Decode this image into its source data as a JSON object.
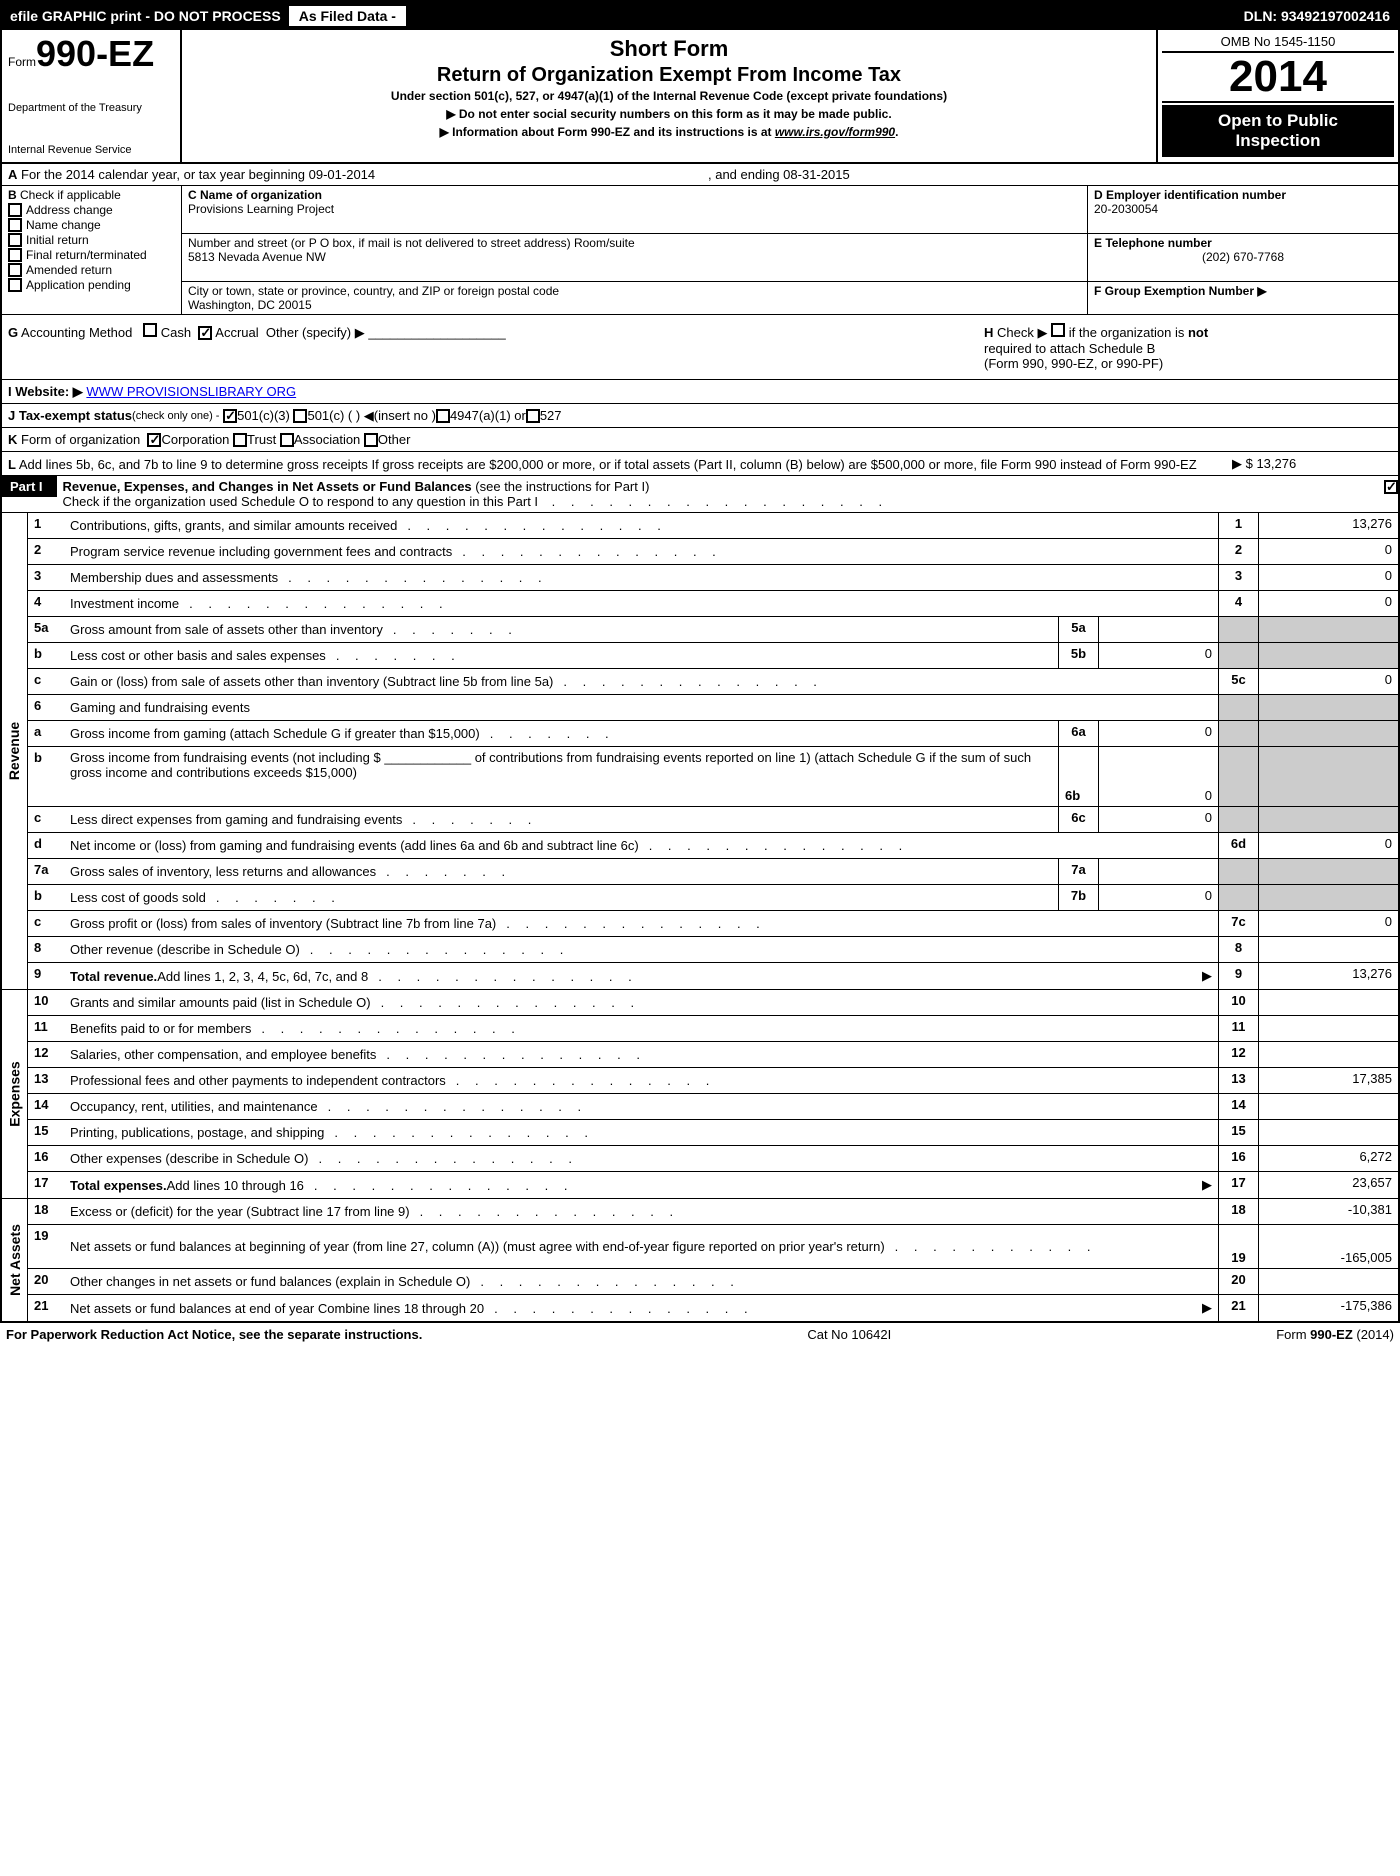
{
  "top_bar": {
    "efile": "efile GRAPHIC print - DO NOT PROCESS",
    "as_filed": "As Filed Data -",
    "dln": "DLN: 93492197002416"
  },
  "header": {
    "form_prefix": "Form",
    "form_number": "990-EZ",
    "dept1": "Department of the Treasury",
    "dept2": "Internal Revenue Service",
    "short_form": "Short Form",
    "title": "Return of Organization Exempt From Income Tax",
    "subtitle": "Under section 501(c), 527, or 4947(a)(1) of the Internal Revenue Code (except private foundations)",
    "notice1": "▶ Do not enter social security numbers on this form as it may be made public.",
    "notice2_pre": "▶ Information about Form 990-EZ and its instructions is at ",
    "notice2_link": "www.irs.gov/form990",
    "notice2_post": ".",
    "omb": "OMB No 1545-1150",
    "year": "2014",
    "open1": "Open to Public",
    "open2": "Inspection"
  },
  "line_a": {
    "label": "A",
    "text_pre": "For the 2014 calendar year, or tax year beginning 09-01-2014",
    "text_mid": ", and ending 08-31-2015"
  },
  "section_b": {
    "label": "B",
    "heading": "Check if applicable",
    "items": [
      "Address change",
      "Name change",
      "Initial return",
      "Final return/terminated",
      "Amended return",
      "Application pending"
    ]
  },
  "section_c": {
    "label_name": "C Name of organization",
    "org_name": "Provisions Learning Project",
    "label_street": "Number and street (or P O box, if mail is not delivered to street address) Room/suite",
    "street": "5813 Nevada Avenue NW",
    "label_city": "City or town, state or province, country, and ZIP or foreign postal code",
    "city": "Washington, DC 20015"
  },
  "section_d": {
    "label": "D Employer identification number",
    "value": "20-2030054"
  },
  "section_e": {
    "label": "E Telephone number",
    "value": "(202) 670-7768"
  },
  "section_f": {
    "label": "F Group Exemption Number  ▶",
    "value": ""
  },
  "line_g": {
    "label": "G",
    "text": "Accounting Method",
    "cash": "Cash",
    "accrual": "Accrual",
    "other": "Other (specify) ▶"
  },
  "line_h": {
    "label": "H",
    "text1": "Check ▶",
    "text2_pre": "if the organization is ",
    "text2_bold": "not",
    "text3": "required to attach Schedule B",
    "text4": "(Form 990, 990-EZ, or 990-PF)"
  },
  "line_i": {
    "label": "I Website: ▶",
    "value": "WWW PROVISIONSLIBRARY ORG"
  },
  "line_j": {
    "label": "J Tax-exempt status",
    "suffix": "(check only one) -",
    "opt1": "501(c)(3)",
    "opt2": "501(c) (   ) ◀(insert no )",
    "opt3": "4947(a)(1) or",
    "opt4": "527"
  },
  "line_k": {
    "label": "K",
    "text": "Form of organization",
    "corp": "Corporation",
    "trust": "Trust",
    "assoc": "Association",
    "other": "Other"
  },
  "line_l": {
    "label": "L",
    "text": "Add lines 5b, 6c, and 7b to line 9 to determine gross receipts  If gross receipts are $200,000 or more, or if total assets (Part II, column (B) below) are $500,000 or more, file Form 990 instead of Form 990-EZ",
    "value": "▶ $ 13,276"
  },
  "part1": {
    "label": "Part I",
    "title": "Revenue, Expenses, and Changes in Net Assets or Fund Balances",
    "paren": "(see the instructions for Part I)",
    "check_text": "Check if the organization used Schedule O to respond to any question in this Part I"
  },
  "revenue_label": "Revenue",
  "expenses_label": "Expenses",
  "netassets_label": "Net Assets",
  "lines": {
    "l1": {
      "num": "1",
      "desc": "Contributions, gifts, grants, and similar amounts received",
      "box": "1",
      "val": "13,276"
    },
    "l2": {
      "num": "2",
      "desc": "Program service revenue including government fees and contracts",
      "box": "2",
      "val": "0"
    },
    "l3": {
      "num": "3",
      "desc": "Membership dues and assessments",
      "box": "3",
      "val": "0"
    },
    "l4": {
      "num": "4",
      "desc": "Investment income",
      "box": "4",
      "val": "0"
    },
    "l5a": {
      "num": "5a",
      "desc": "Gross amount from sale of assets other than inventory",
      "sub": "5a",
      "subval": ""
    },
    "l5b": {
      "num": "b",
      "desc": "Less  cost or other basis and sales expenses",
      "sub": "5b",
      "subval": "0"
    },
    "l5c": {
      "num": "c",
      "desc": "Gain or (loss) from sale of assets other than inventory (Subtract line 5b from line 5a)",
      "box": "5c",
      "val": "0"
    },
    "l6": {
      "num": "6",
      "desc": "Gaming and fundraising events"
    },
    "l6a": {
      "num": "a",
      "desc": "Gross income from gaming (attach Schedule G if greater than $15,000)",
      "sub": "6a",
      "subval": "0"
    },
    "l6b": {
      "num": "b",
      "desc1": "Gross income from fundraising events (not including $ ",
      "desc2": "of contributions from fundraising events reported on line 1) (attach Schedule G if the sum of such gross income and contributions exceeds $15,000)",
      "sub": "6b",
      "subval": "0"
    },
    "l6c": {
      "num": "c",
      "desc": "Less  direct expenses from gaming and fundraising events",
      "sub": "6c",
      "subval": "0"
    },
    "l6d": {
      "num": "d",
      "desc": "Net income or (loss) from gaming and fundraising events (add lines 6a and 6b and subtract line 6c)",
      "box": "6d",
      "val": "0"
    },
    "l7a": {
      "num": "7a",
      "desc": "Gross sales of inventory, less returns and allowances",
      "sub": "7a",
      "subval": ""
    },
    "l7b": {
      "num": "b",
      "desc": "Less  cost of goods sold",
      "sub": "7b",
      "subval": "0"
    },
    "l7c": {
      "num": "c",
      "desc": "Gross profit or (loss) from sales of inventory (Subtract line 7b from line 7a)",
      "box": "7c",
      "val": "0"
    },
    "l8": {
      "num": "8",
      "desc": "Other revenue (describe in Schedule O)",
      "box": "8",
      "val": ""
    },
    "l9": {
      "num": "9",
      "desc_bold": "Total revenue.",
      "desc": " Add lines 1, 2, 3, 4, 5c, 6d, 7c, and 8",
      "box": "9",
      "val": "13,276"
    },
    "l10": {
      "num": "10",
      "desc": "Grants and similar amounts paid (list in Schedule O)",
      "box": "10",
      "val": ""
    },
    "l11": {
      "num": "11",
      "desc": "Benefits paid to or for members",
      "box": "11",
      "val": ""
    },
    "l12": {
      "num": "12",
      "desc": "Salaries, other compensation, and employee benefits",
      "box": "12",
      "val": ""
    },
    "l13": {
      "num": "13",
      "desc": "Professional fees and other payments to independent contractors",
      "box": "13",
      "val": "17,385"
    },
    "l14": {
      "num": "14",
      "desc": "Occupancy, rent, utilities, and maintenance",
      "box": "14",
      "val": ""
    },
    "l15": {
      "num": "15",
      "desc": "Printing, publications, postage, and shipping",
      "box": "15",
      "val": ""
    },
    "l16": {
      "num": "16",
      "desc": "Other expenses (describe in Schedule O)",
      "box": "16",
      "val": "6,272"
    },
    "l17": {
      "num": "17",
      "desc_bold": "Total expenses.",
      "desc": " Add lines 10 through 16",
      "box": "17",
      "val": "23,657"
    },
    "l18": {
      "num": "18",
      "desc": "Excess or (deficit) for the year (Subtract line 17 from line 9)",
      "box": "18",
      "val": "-10,381"
    },
    "l19": {
      "num": "19",
      "desc": "Net assets or fund balances at beginning of year (from line 27, column (A)) (must agree with end-of-year figure reported on prior year's return)",
      "box": "19",
      "val": "-165,005"
    },
    "l20": {
      "num": "20",
      "desc": "Other changes in net assets or fund balances (explain in Schedule O)",
      "box": "20",
      "val": ""
    },
    "l21": {
      "num": "21",
      "desc": "Net assets or fund balances at end of year Combine lines 18 through 20",
      "box": "21",
      "val": "-175,386"
    }
  },
  "footer": {
    "left": "For Paperwork Reduction Act Notice, see the separate instructions.",
    "mid": "Cat No 10642I",
    "right_pre": "Form ",
    "right_bold": "990-EZ",
    "right_post": " (2014)"
  }
}
